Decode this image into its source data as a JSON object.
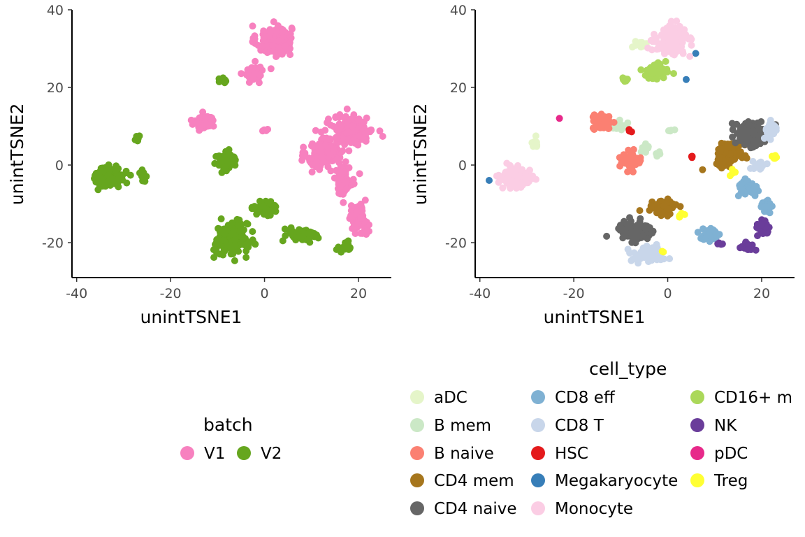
{
  "chart_data": [
    {
      "type": "scatter",
      "title": "",
      "xlabel": "unintTSNE1",
      "ylabel": "unintTSNE2",
      "xlim": [
        -41,
        27
      ],
      "ylim": [
        -29,
        40
      ],
      "xticks": [
        -40,
        -20,
        0,
        20
      ],
      "yticks": [
        -20,
        0,
        20,
        40
      ],
      "xtick_labels": [
        "-40",
        "-20",
        "0",
        "20"
      ],
      "ytick_labels": [
        "-20",
        "0",
        "20",
        "40"
      ],
      "grid": false,
      "legend": {
        "title": "batch",
        "placement": "bottom"
      },
      "series": [
        {
          "name": "V1",
          "color": "#f781bf",
          "clusters": [
            {
              "x": 2,
              "y": 32,
              "sx": 2.5,
              "sy": 2.6,
              "n": 130
            },
            {
              "x": -2,
              "y": 24,
              "sx": 1.4,
              "sy": 1.4,
              "n": 40
            },
            {
              "x": -13,
              "y": 11,
              "sx": 1.6,
              "sy": 1.3,
              "n": 60
            },
            {
              "x": 13,
              "y": 3,
              "sx": 2.6,
              "sy": 2.8,
              "n": 150
            },
            {
              "x": 19,
              "y": 9,
              "sx": 2.8,
              "sy": 2.4,
              "n": 170
            },
            {
              "x": 17,
              "y": -4,
              "sx": 1.5,
              "sy": 2.3,
              "n": 50
            },
            {
              "x": 20,
              "y": -14,
              "sx": 1.4,
              "sy": 2.6,
              "n": 60
            },
            {
              "x": 0,
              "y": 9,
              "sx": 0.6,
              "sy": 0.2,
              "n": 5
            }
          ]
        },
        {
          "name": "V2",
          "color": "#66a61e",
          "clusters": [
            {
              "x": -33,
              "y": -3,
              "sx": 2.1,
              "sy": 1.8,
              "n": 130
            },
            {
              "x": -27,
              "y": 7,
              "sx": 0.5,
              "sy": 0.8,
              "n": 6
            },
            {
              "x": -26,
              "y": -3,
              "sx": 0.6,
              "sy": 0.9,
              "n": 10
            },
            {
              "x": -9,
              "y": 22,
              "sx": 0.6,
              "sy": 0.6,
              "n": 8
            },
            {
              "x": -8,
              "y": 1,
              "sx": 1.5,
              "sy": 1.4,
              "n": 60
            },
            {
              "x": -7,
              "y": -19,
              "sx": 2.3,
              "sy": 2.8,
              "n": 190
            },
            {
              "x": 0,
              "y": -11,
              "sx": 1.6,
              "sy": 1.0,
              "n": 50
            },
            {
              "x": 8,
              "y": -18,
              "sx": 2.2,
              "sy": 1.2,
              "n": 60
            },
            {
              "x": 17,
              "y": -21,
              "sx": 1.1,
              "sy": 0.8,
              "n": 15
            }
          ]
        }
      ]
    },
    {
      "type": "scatter",
      "title": "",
      "xlabel": "unintTSNE1",
      "ylabel": "unintTSNE2",
      "xlim": [
        -41,
        27
      ],
      "ylim": [
        -29,
        40
      ],
      "xticks": [
        -40,
        -20,
        0,
        20
      ],
      "yticks": [
        -20,
        0,
        20,
        40
      ],
      "xtick_labels": [
        "-40",
        "-20",
        "0",
        "20"
      ],
      "ytick_labels": [
        "-20",
        "0",
        "20",
        "40"
      ],
      "grid": false,
      "legend": {
        "title": "cell_type",
        "placement": "bottom",
        "columns": 3
      },
      "series": [
        {
          "name": "aDC",
          "color": "#e5f5c9",
          "clusters": [
            {
              "x": -6,
              "y": 31,
              "sx": 1.0,
              "sy": 0.5,
              "n": 12
            },
            {
              "x": -28,
              "y": 6,
              "sx": 0.8,
              "sy": 1.0,
              "n": 8
            }
          ]
        },
        {
          "name": "B mem",
          "color": "#cbe8c6",
          "clusters": [
            {
              "x": -10,
              "y": 10,
              "sx": 1.5,
              "sy": 0.8,
              "n": 18
            },
            {
              "x": -5,
              "y": 4,
              "sx": 0.8,
              "sy": 1.0,
              "n": 12
            },
            {
              "x": -2,
              "y": 3,
              "sx": 0.4,
              "sy": 0.6,
              "n": 5
            },
            {
              "x": 1,
              "y": 9,
              "sx": 0.6,
              "sy": 0.2,
              "n": 4
            }
          ]
        },
        {
          "name": "B naive",
          "color": "#fb8072",
          "clusters": [
            {
              "x": -14,
              "y": 11,
              "sx": 1.3,
              "sy": 1.2,
              "n": 70
            },
            {
              "x": -8,
              "y": 1,
              "sx": 1.5,
              "sy": 1.2,
              "n": 70
            }
          ]
        },
        {
          "name": "CD4 mem",
          "color": "#a6761d",
          "clusters": [
            {
              "x": 13,
              "y": 3,
              "sx": 1.9,
              "sy": 2.0,
              "n": 90
            },
            {
              "x": -1,
              "y": -11,
              "sx": 1.6,
              "sy": 1.1,
              "n": 70
            }
          ]
        },
        {
          "name": "CD4 naive",
          "color": "#666666",
          "clusters": [
            {
              "x": 18,
              "y": 8,
              "sx": 2.1,
              "sy": 2.3,
              "n": 130
            },
            {
              "x": -7,
              "y": -17,
              "sx": 2.5,
              "sy": 1.8,
              "n": 120
            }
          ]
        },
        {
          "name": "CD8 eff",
          "color": "#7fb1d3",
          "clusters": [
            {
              "x": 17,
              "y": -6,
              "sx": 1.3,
              "sy": 1.6,
              "n": 45
            },
            {
              "x": 21,
              "y": -11,
              "sx": 1.0,
              "sy": 1.2,
              "n": 30
            },
            {
              "x": 9,
              "y": -18,
              "sx": 1.5,
              "sy": 1.3,
              "n": 45
            }
          ]
        },
        {
          "name": "CD8 T",
          "color": "#c8d6ea",
          "clusters": [
            {
              "x": 22,
              "y": 9,
              "sx": 1.0,
              "sy": 1.6,
              "n": 30
            },
            {
              "x": 19,
              "y": 0,
              "sx": 1.1,
              "sy": 1.0,
              "n": 15
            },
            {
              "x": -4,
              "y": -23,
              "sx": 2.2,
              "sy": 1.3,
              "n": 110
            }
          ]
        },
        {
          "name": "HSC",
          "color": "#e41a1c",
          "clusters": [
            {
              "x": -8,
              "y": 9,
              "sx": 0.3,
              "sy": 0.3,
              "n": 3
            },
            {
              "x": 5,
              "y": 2,
              "sx": 0.3,
              "sy": 0.3,
              "n": 3
            }
          ]
        },
        {
          "name": "Megakaryocyte",
          "color": "#377eb8",
          "clusters": [
            {
              "x": 6,
              "y": 29,
              "sx": 0.1,
              "sy": 0.1,
              "n": 1
            },
            {
              "x": 4,
              "y": 22,
              "sx": 0.1,
              "sy": 0.1,
              "n": 1
            },
            {
              "x": -38,
              "y": -4,
              "sx": 0.1,
              "sy": 0.1,
              "n": 1
            }
          ]
        },
        {
          "name": "Monocyte",
          "color": "#fbcde4",
          "clusters": [
            {
              "x": 1,
              "y": 32,
              "sx": 2.3,
              "sy": 2.4,
              "n": 140
            },
            {
              "x": -32,
              "y": -3,
              "sx": 2.3,
              "sy": 1.8,
              "n": 130
            }
          ]
        },
        {
          "name": "CD16+ m",
          "color": "#abd85a",
          "clusters": [
            {
              "x": -3,
              "y": 24,
              "sx": 1.8,
              "sy": 1.3,
              "n": 45
            },
            {
              "x": -9,
              "y": 22,
              "sx": 0.6,
              "sy": 0.4,
              "n": 6
            }
          ]
        },
        {
          "name": "NK",
          "color": "#6a3d9a",
          "clusters": [
            {
              "x": 20,
              "y": -16,
              "sx": 0.9,
              "sy": 1.2,
              "n": 30
            },
            {
              "x": 17,
              "y": -21,
              "sx": 1.0,
              "sy": 0.8,
              "n": 25
            },
            {
              "x": 11,
              "y": -20,
              "sx": 0.5,
              "sy": 0.5,
              "n": 6
            }
          ]
        },
        {
          "name": "pDC",
          "color": "#e7298a",
          "clusters": [
            {
              "x": -23,
              "y": 12,
              "sx": 0.1,
              "sy": 0.1,
              "n": 1
            }
          ]
        },
        {
          "name": "Treg",
          "color": "#ffff33",
          "clusters": [
            {
              "x": 23,
              "y": 2,
              "sx": 0.5,
              "sy": 0.5,
              "n": 5
            },
            {
              "x": 3,
              "y": -13,
              "sx": 0.6,
              "sy": 0.5,
              "n": 6
            },
            {
              "x": 14,
              "y": -2,
              "sx": 0.6,
              "sy": 0.5,
              "n": 5
            },
            {
              "x": -1,
              "y": -22,
              "sx": 0.3,
              "sy": 0.3,
              "n": 2
            }
          ]
        }
      ]
    }
  ]
}
